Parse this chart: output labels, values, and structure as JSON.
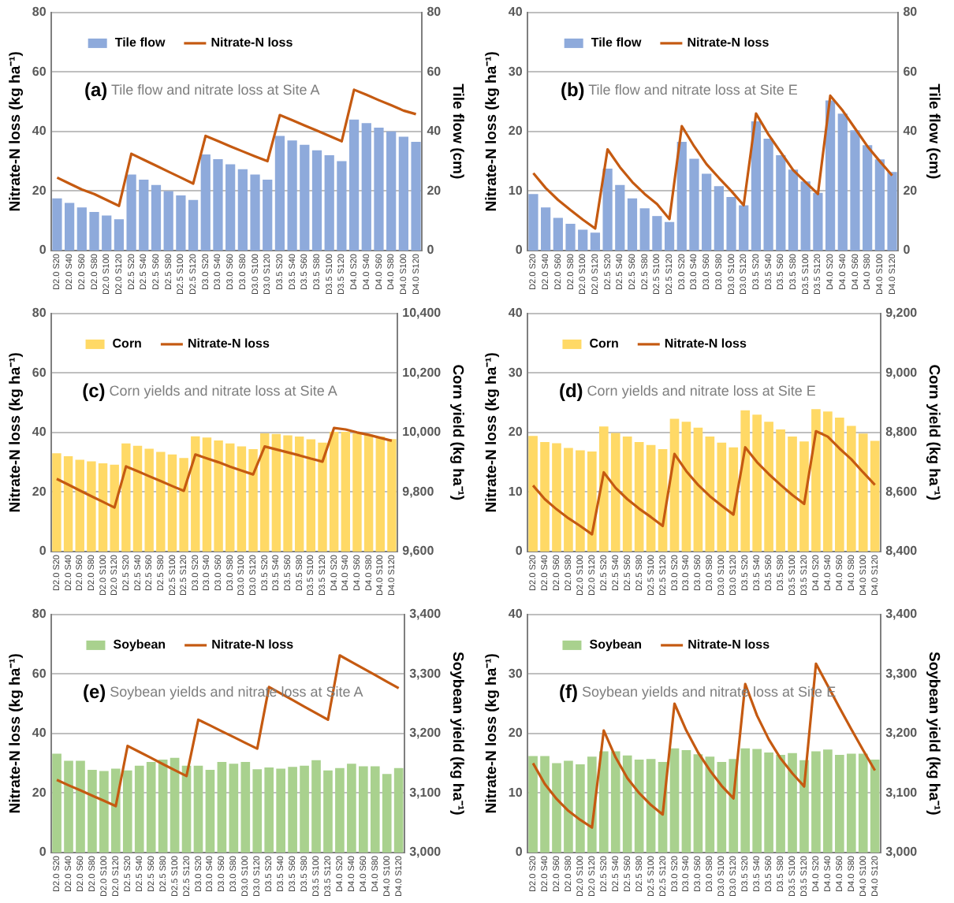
{
  "chart_data": [
    {
      "type": "bar",
      "title": "(a) Tile flow and nitrate loss at Site A",
      "ylabel": "Nitrate-N loss (kg ha⁻¹)",
      "y2label": "Tile flow (cm)",
      "categories": [
        "D2.0 S20",
        "D2.0 S40",
        "D2.0 S60",
        "D2.0 S80",
        "D2.0 S100",
        "D2.0 S120",
        "D2.5 S20",
        "D2.5 S40",
        "D2.5 S60",
        "D2.5 S80",
        "D2.5 S100",
        "D2.5 S120",
        "D3.0 S20",
        "D3.0 S40",
        "D3.0 S60",
        "D3.0 S80",
        "D3.0 S100",
        "D3.0 S120",
        "D3.5 S20",
        "D3.5 S40",
        "D3.5 S60",
        "D3.5 S80",
        "D3.5 S100",
        "D3.5 S120",
        "D4.0 S20",
        "D4.0 S40",
        "D4.0 S60",
        "D4.0 S80",
        "D4.0 S100",
        "D4.0 S120"
      ],
      "series": [
        {
          "name": "Tile flow",
          "axis": "y2",
          "color": "#8eaadb",
          "values": [
            17.5,
            16,
            14.5,
            13,
            11.8,
            10.5,
            25.5,
            23.8,
            22,
            20,
            18.5,
            17,
            32.3,
            30.7,
            29,
            27.3,
            25.5,
            23.8,
            38.5,
            37,
            35.5,
            33.7,
            32,
            30,
            44,
            42.8,
            41.3,
            40,
            38.2,
            36.5
          ]
        },
        {
          "name": "Nitrate-N loss",
          "type": "line",
          "color": "#c55a11",
          "values": [
            24.5,
            22.5,
            20.5,
            19,
            17,
            15,
            32.5,
            30.5,
            28.5,
            26.5,
            24.5,
            22.5,
            38.5,
            36.8,
            35,
            33.3,
            31.6,
            30,
            45.5,
            43.8,
            42,
            40.3,
            38.5,
            36.7,
            54,
            52.3,
            50.5,
            48.8,
            47,
            45.8
          ]
        }
      ],
      "ylim": [
        0,
        80
      ],
      "yticks": [
        0,
        20,
        40,
        60,
        80
      ],
      "y2lim": [
        0,
        80
      ],
      "y2ticks": [
        0,
        20,
        40,
        60,
        80
      ],
      "grid": "y",
      "legend": "top left",
      "marker": "none"
    },
    {
      "type": "bar",
      "title": "(b) Tile flow and nitrate loss at Site E",
      "ylabel": "Nitrate-N loss (kg ha⁻¹)",
      "y2label": "Tile flow (cm)",
      "categories": [
        "D2.0 S20",
        "D2.0 S40",
        "D2.0 S60",
        "D2.0 S80",
        "D2.0 S100",
        "D2.0 S120",
        "D2.5 S20",
        "D2.5 S40",
        "D2.5 S60",
        "D2.5 S80",
        "D2.5 S100",
        "D2.5 S120",
        "D3.0 S20",
        "D3.0 S40",
        "D3.0 S60",
        "D3.0 S80",
        "D3.0 S100",
        "D3.0 S120",
        "D3.5 S20",
        "D3.5 S40",
        "D3.5 S60",
        "D3.5 S80",
        "D3.5 S100",
        "D3.5 S120",
        "D4.0 S20",
        "D4.0 S40",
        "D4.0 S60",
        "D4.0 S80",
        "D4.0 S100",
        "D4.0 S120"
      ],
      "series": [
        {
          "name": "Tile flow",
          "axis": "y2",
          "color": "#8eaadb",
          "values": [
            19,
            14.5,
            11,
            9,
            7,
            6,
            27.5,
            22,
            17.5,
            14.2,
            11.6,
            9.6,
            36.5,
            30.8,
            25.8,
            21.6,
            18,
            15.2,
            43.4,
            37.6,
            32,
            27.2,
            23.2,
            19.4,
            50.4,
            46,
            40.4,
            35.4,
            30.6,
            26.4
          ]
        },
        {
          "name": "Nitrate-N loss",
          "type": "line",
          "color": "#c55a11",
          "values": [
            13,
            10.5,
            8.5,
            6.8,
            5.2,
            3.7,
            17,
            14,
            11.5,
            9.5,
            7.8,
            5.3,
            20.9,
            17.5,
            14.5,
            12.2,
            10,
            7.6,
            23,
            19.5,
            16.5,
            13.5,
            11.5,
            9.5,
            26,
            23.5,
            20.5,
            17.5,
            15,
            12.6
          ]
        }
      ],
      "ylim": [
        0,
        40
      ],
      "yticks": [
        0,
        10,
        20,
        30,
        40
      ],
      "y2lim": [
        0,
        80
      ],
      "y2ticks": [
        0,
        20,
        40,
        60,
        80
      ],
      "grid": "y",
      "legend": "top left",
      "marker": "none"
    },
    {
      "type": "bar",
      "title": "(c) Corn yields and nitrate loss at Site A",
      "ylabel": "Nitrate-N loss (kg ha⁻¹)",
      "y2label": "Corn yield (kg ha⁻¹)",
      "categories": [
        "D2.0 S20",
        "D2.0 S40",
        "D2.0 S60",
        "D2.0 S80",
        "D2.0 S100",
        "D2.0 S120",
        "D2.5 S20",
        "D2.5 S40",
        "D2.5 S60",
        "D2.5 S80",
        "D2.5 S100",
        "D2.5 S120",
        "D3.0 S20",
        "D3.0 S40",
        "D3.0 S60",
        "D3.0 S80",
        "D3.0 S100",
        "D3.0 S120",
        "D3.5 S20",
        "D3.5 S40",
        "D3.5 S60",
        "D3.5 S80",
        "D3.5 S100",
        "D3.5 S120",
        "D4.0 S20",
        "D4.0 S40",
        "D4.0 S60",
        "D4.0 S80",
        "D4.0 S100",
        "D4.0 S120"
      ],
      "series": [
        {
          "name": "Corn",
          "axis": "y2",
          "color": "#ffd966",
          "values": [
            9930,
            9920,
            9908,
            9903,
            9896,
            9892,
            9963,
            9955,
            9945,
            9935,
            9926,
            9914,
            9987,
            9983,
            9973,
            9963,
            9953,
            9944,
            9997,
            9995,
            9990,
            9986,
            9977,
            9966,
            10002,
            10002,
            9997,
            9992,
            9986,
            9978
          ]
        },
        {
          "name": "Nitrate-N loss",
          "type": "line",
          "color": "#c55a11",
          "values": [
            24.4,
            22.5,
            20.5,
            18.6,
            16.7,
            14.8,
            28.6,
            27,
            25.3,
            23.7,
            22,
            20.4,
            32.6,
            31.3,
            30,
            28.5,
            27.2,
            25.9,
            35.3,
            34.3,
            33.3,
            32.3,
            31.2,
            30.2,
            41.5,
            41,
            40,
            39.2,
            38.2,
            37.2
          ]
        }
      ],
      "ylim": [
        0,
        80
      ],
      "yticks": [
        0,
        20,
        40,
        60,
        80
      ],
      "y2lim": [
        9600,
        10400
      ],
      "y2ticks": [
        {
          "value": 9600,
          "label": "9,600"
        },
        {
          "value": 9800,
          "label": "9,800"
        },
        {
          "value": 10000,
          "label": "10,000"
        },
        {
          "value": 10200,
          "label": "10,200"
        },
        {
          "value": 10400,
          "label": "10,400"
        }
      ],
      "grid": "y",
      "legend": "top left",
      "marker": "none"
    },
    {
      "type": "bar",
      "title": "(d) Corn yields and nitrate loss at Site E",
      "ylabel": "Nitrate-N loss (kg ha⁻¹)",
      "y2label": "Corn yield (kg ha⁻¹)",
      "categories": [
        "D2.0 S20",
        "D2.0 S40",
        "D2.0 S60",
        "D2.0 S80",
        "D2.0 S100",
        "D2.0 S120",
        "D2.5 S20",
        "D2.5 S40",
        "D2.5 S60",
        "D2.5 S80",
        "D2.5 S100",
        "D2.5 S120",
        "D3.0 S20",
        "D3.0 S40",
        "D3.0 S60",
        "D3.0 S80",
        "D3.0 S100",
        "D3.0 S120",
        "D3.5 S20",
        "D3.5 S40",
        "D3.5 S60",
        "D3.5 S80",
        "D3.5 S100",
        "D3.5 S120",
        "D4.0 S20",
        "D4.0 S40",
        "D4.0 S60",
        "D4.0 S80",
        "D4.0 S100",
        "D4.0 S120"
      ],
      "series": [
        {
          "name": "Corn",
          "axis": "y2",
          "color": "#ffd966",
          "values": [
            8788,
            8768,
            8764,
            8748,
            8740,
            8736,
            8820,
            8798,
            8786,
            8768,
            8758,
            8744,
            8846,
            8836,
            8816,
            8786,
            8766,
            8750,
            8874,
            8860,
            8836,
            8810,
            8786,
            8770,
            8878,
            8870,
            8850,
            8822,
            8796,
            8772
          ]
        },
        {
          "name": "Nitrate-N loss",
          "type": "line",
          "color": "#c55a11",
          "values": [
            11.1,
            8.8,
            7.1,
            5.6,
            4.3,
            2.9,
            13.3,
            10.7,
            8.8,
            7.2,
            5.8,
            4.3,
            16.4,
            13.5,
            11.2,
            9.3,
            7.7,
            6.2,
            17.5,
            15,
            13,
            11.2,
            9.5,
            8,
            20.2,
            19.3,
            17.3,
            15.5,
            13.3,
            11.2
          ]
        }
      ],
      "ylim": [
        0,
        40
      ],
      "yticks": [
        0,
        10,
        20,
        30,
        40
      ],
      "y2lim": [
        8400,
        9200
      ],
      "y2ticks": [
        {
          "value": 8400,
          "label": "8,400"
        },
        {
          "value": 8600,
          "label": "8,600"
        },
        {
          "value": 8800,
          "label": "8,800"
        },
        {
          "value": 9000,
          "label": "9,000"
        },
        {
          "value": 9200,
          "label": "9,200"
        }
      ],
      "grid": "y",
      "legend": "top left",
      "marker": "none"
    },
    {
      "type": "bar",
      "title": "(e) Soybean yields and nitrate loss at Site A",
      "ylabel": "Nitrate-N loss (kg ha⁻¹)",
      "y2label": "Soybean yield (kg ha⁻¹)",
      "categories": [
        "D2.0 S20",
        "D2.0 S40",
        "D2.0 S60",
        "D2.0 S80",
        "D2.0 S100",
        "D2.0 S120",
        "D2.5 S20",
        "D2.5 S40",
        "D2.5 S60",
        "D2.5 S80",
        "D2.5 S100",
        "D2.5 S120",
        "D3.0 S20",
        "D3.0 S40",
        "D3.0 S60",
        "D3.0 S80",
        "D3.0 S100",
        "D3.0 S120",
        "D3.5 S20",
        "D3.5 S40",
        "D3.5 S60",
        "D3.5 S80",
        "D3.5 S100",
        "D3.5 S120",
        "D4.0 S20",
        "D4.0 S40",
        "D4.0 S60",
        "D4.0 S80",
        "D4.0 S100",
        "D4.0 S120"
      ],
      "series": [
        {
          "name": "Soybean",
          "axis": "y2",
          "color": "#a9d18e",
          "values": [
            3166,
            3154,
            3154,
            3139,
            3137,
            3141,
            3138,
            3146,
            3152,
            3156,
            3159,
            3146,
            3146,
            3139,
            3152,
            3149,
            3152,
            3140,
            3143,
            3141,
            3144,
            3146,
            3155,
            3138,
            3142,
            3149,
            3145,
            3145,
            3132,
            3142
          ]
        },
        {
          "name": "Nitrate-N loss",
          "type": "line",
          "color": "#c55a11",
          "values": [
            24.4,
            22.6,
            20.9,
            19.1,
            17.4,
            15.6,
            35.8,
            33.8,
            31.8,
            29.7,
            27.7,
            25.7,
            44.6,
            42.7,
            40.7,
            38.8,
            36.8,
            34.9,
            55.6,
            53.4,
            51.2,
            49,
            46.8,
            44.6,
            66.2,
            64,
            61.8,
            59.6,
            57.4,
            55.2
          ]
        }
      ],
      "ylim": [
        0,
        80
      ],
      "yticks": [
        0,
        20,
        40,
        60,
        80
      ],
      "y2lim": [
        3000,
        3400
      ],
      "y2ticks": [
        {
          "value": 3000,
          "label": "3,000"
        },
        {
          "value": 3100,
          "label": "3,100"
        },
        {
          "value": 3200,
          "label": "3,200"
        },
        {
          "value": 3300,
          "label": "3,300"
        },
        {
          "value": 3400,
          "label": "3,400"
        }
      ],
      "grid": "y",
      "legend": "top left",
      "marker": "none"
    },
    {
      "type": "bar",
      "title": "(f) Soybean yields and nitrate loss at Site E",
      "ylabel": "Nitrate-N loss (kg ha⁻¹)",
      "y2label": "Soybean yield (kg ha⁻¹)",
      "categories": [
        "D2.0 S20",
        "D2.0 S40",
        "D2.0 S60",
        "D2.0 S80",
        "D2.0 S100",
        "D2.0 S120",
        "D2.5 S20",
        "D2.5 S40",
        "D2.5 S60",
        "D2.5 S80",
        "D2.5 S100",
        "D2.5 S120",
        "D3.0 S20",
        "D3.0 S40",
        "D3.0 S60",
        "D3.0 S80",
        "D3.0 S100",
        "D3.0 S120",
        "D3.5 S20",
        "D3.5 S40",
        "D3.5 S60",
        "D3.5 S80",
        "D3.5 S100",
        "D3.5 S120",
        "D4.0 S20",
        "D4.0 S40",
        "D4.0 S60",
        "D4.0 S80",
        "D4.0 S100",
        "D4.0 S120"
      ],
      "series": [
        {
          "name": "Soybean",
          "axis": "y2",
          "color": "#a9d18e",
          "values": [
            3162,
            3162,
            3150,
            3154,
            3148,
            3161,
            3170,
            3170,
            3163,
            3156,
            3157,
            3152,
            3175,
            3172,
            3165,
            3161,
            3152,
            3157,
            3175,
            3174,
            3168,
            3164,
            3167,
            3155,
            3170,
            3173,
            3164,
            3166,
            3166,
            3156
          ]
        },
        {
          "name": "Nitrate-N loss",
          "type": "line",
          "color": "#c55a11",
          "values": [
            15,
            11.5,
            9,
            7,
            5.5,
            4.2,
            20.5,
            16,
            12.5,
            10,
            8,
            6.4,
            25,
            20.5,
            16.8,
            13.8,
            11.2,
            9.1,
            28.3,
            23,
            19,
            15.8,
            13.3,
            11.1,
            31.7,
            28,
            24.3,
            20.7,
            17.2,
            13.8
          ]
        }
      ],
      "ylim": [
        0,
        40
      ],
      "yticks": [
        0,
        10,
        20,
        30,
        40
      ],
      "y2lim": [
        3000,
        3400
      ],
      "y2ticks": [
        {
          "value": 3000,
          "label": "3,000"
        },
        {
          "value": 3100,
          "label": "3,100"
        },
        {
          "value": 3200,
          "label": "3,200"
        },
        {
          "value": 3300,
          "label": "3,300"
        },
        {
          "value": 3400,
          "label": "3,400"
        }
      ],
      "grid": "y",
      "legend": "top left",
      "marker": "none"
    }
  ]
}
